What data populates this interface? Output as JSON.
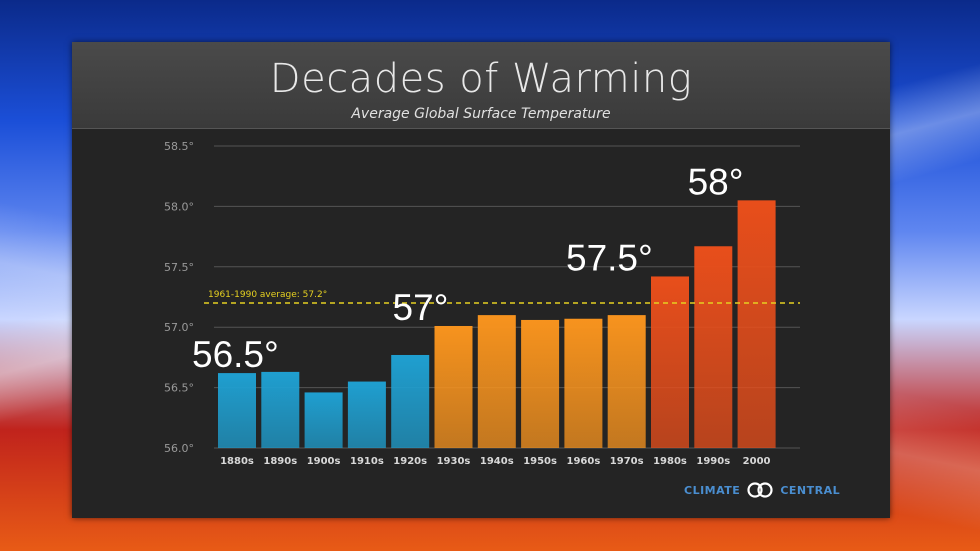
{
  "slide": {
    "logo_left": "CLIMATE",
    "logo_right": "CENTRAL"
  },
  "chart_data": {
    "type": "bar",
    "title": "Decades of Warming",
    "subtitle": "Average Global Surface Temperature",
    "categories": [
      "1880s",
      "1890s",
      "1900s",
      "1910s",
      "1920s",
      "1930s",
      "1940s",
      "1950s",
      "1960s",
      "1970s",
      "1980s",
      "1990s",
      "2000"
    ],
    "values": [
      56.62,
      56.63,
      56.46,
      56.55,
      56.77,
      57.01,
      57.1,
      57.06,
      57.07,
      57.1,
      57.42,
      57.67,
      58.05
    ],
    "bar_colors": [
      "#1f9fd0",
      "#1f9fd0",
      "#1f9fd0",
      "#1f9fd0",
      "#1f9fd0",
      "#f7931e",
      "#f7931e",
      "#f7931e",
      "#f7931e",
      "#f7931e",
      "#e84e1b",
      "#e84e1b",
      "#e84e1b"
    ],
    "ylim": [
      56.0,
      58.5
    ],
    "yticks": [
      56.0,
      56.5,
      57.0,
      57.5,
      58.0,
      58.5
    ],
    "ytick_labels": [
      "56.0°",
      "56.5°",
      "57.0°",
      "57.5°",
      "58.0°",
      "58.5°"
    ],
    "reference_line": {
      "value": 57.2,
      "label": "1961-1990 average: 57.2°",
      "color": "#e5d021"
    },
    "annotations": [
      {
        "text": "56.5°",
        "category": "1880s"
      },
      {
        "text": "57°",
        "category": "1930s"
      },
      {
        "text": "57.5°",
        "category": "1980s"
      },
      {
        "text": "58°",
        "category": "2000"
      }
    ],
    "grid": true,
    "legend": "none"
  }
}
